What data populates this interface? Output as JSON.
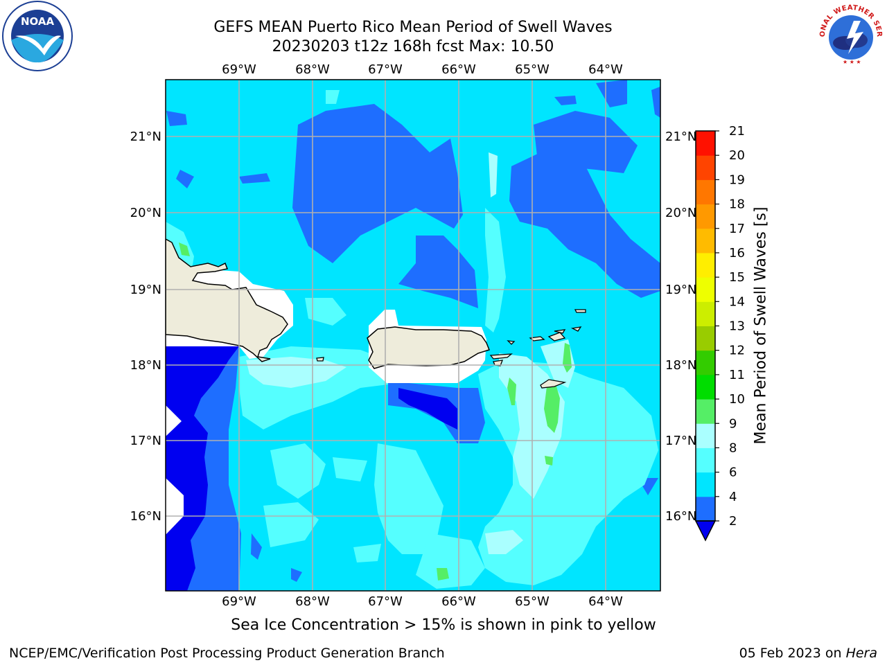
{
  "title": {
    "line1": "GEFS MEAN Puerto Rico Mean Period of Swell Waves",
    "line2": "20230203 t12z 168h fcst   Max: 10.50"
  },
  "logos": {
    "left": {
      "name": "noaa-logo",
      "text": "NOAA"
    },
    "right": {
      "name": "nws-logo",
      "text": "NATIONAL WEATHER SERVICE"
    }
  },
  "map": {
    "lon_labels": [
      "69°W",
      "68°W",
      "67°W",
      "66°W",
      "65°W",
      "64°W"
    ],
    "lat_labels": [
      "21°N",
      "20°N",
      "19°N",
      "18°N",
      "17°N",
      "16°N"
    ],
    "land_color": "#eeecdb",
    "ocean_color": "#00e5ff"
  },
  "colorbar": {
    "title": "Mean Period of Swell Waves [s]",
    "ticks": [
      "2",
      "4",
      "6",
      "8",
      "9",
      "10",
      "11",
      "12",
      "13",
      "14",
      "15",
      "16",
      "17",
      "18",
      "19",
      "20",
      "21"
    ],
    "colors": [
      "#0000f0",
      "#1e6eff",
      "#00e5ff",
      "#55ffff",
      "#aaffff",
      "#55ee66",
      "#00dd00",
      "#33cc00",
      "#99cc00",
      "#ccee00",
      "#eeff00",
      "#ffee00",
      "#ffbb00",
      "#ff9900",
      "#ff7700",
      "#ff4400",
      "#ff1100",
      "#ff0000"
    ]
  },
  "subcaption": "Sea Ice Concentration > 15% is shown in pink to yellow",
  "footer": {
    "left": "NCEP/EMC/Verification Post Processing Product Generation Branch",
    "right_date": "05 Feb 2023 on ",
    "right_host": "Hera"
  }
}
